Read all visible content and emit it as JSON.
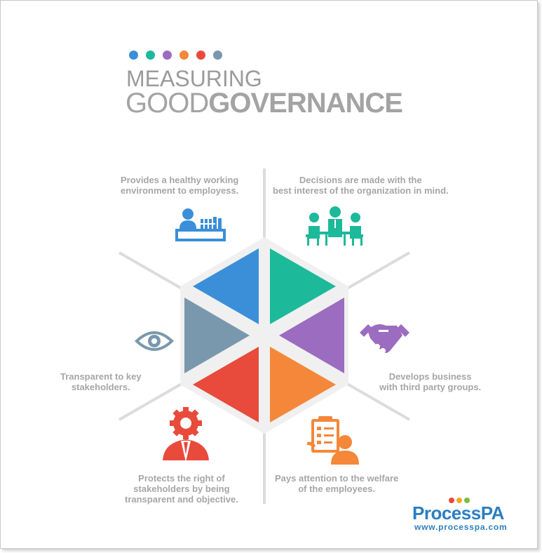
{
  "header": {
    "title_line1": "MEASURING",
    "title_part1": "GOOD",
    "title_part2": "GOVERNANCE",
    "dot_colors": [
      "#3a8fd8",
      "#1cb99a",
      "#9b6cc0",
      "#f5873a",
      "#e84a3c",
      "#7a98ad"
    ]
  },
  "segments": [
    {
      "name": "blue",
      "color": "#3a8fd8",
      "icon": "employee-desk-icon",
      "caption": [
        "Provides a healthy working",
        "environment to employess."
      ]
    },
    {
      "name": "green",
      "color": "#1cb99a",
      "icon": "meeting-icon",
      "caption": [
        "Decisions are made with the",
        "best interest of the organization in mind."
      ]
    },
    {
      "name": "purple",
      "color": "#9b6cc0",
      "icon": "handshake-icon",
      "caption": [
        "Develops business",
        "with third party groups."
      ]
    },
    {
      "name": "orange",
      "color": "#f5873a",
      "icon": "checklist-person-icon",
      "caption": [
        "Pays attention to the welfare",
        "of the employees."
      ]
    },
    {
      "name": "red",
      "color": "#e84a3c",
      "icon": "gear-person-icon",
      "caption": [
        "Protects the right of",
        "stakeholders by being",
        "transparent and objective."
      ]
    },
    {
      "name": "slate",
      "color": "#7a98ad",
      "icon": "eye-icon",
      "caption": [
        "Transparent to key",
        "stakeholders."
      ]
    }
  ],
  "logo": {
    "part1": "Process",
    "part2": "PA",
    "url": "www.processpa.com",
    "color": "#2b7fc2",
    "dot_colors": [
      "#e84a3c",
      "#f5a623",
      "#7bbd3e"
    ]
  }
}
